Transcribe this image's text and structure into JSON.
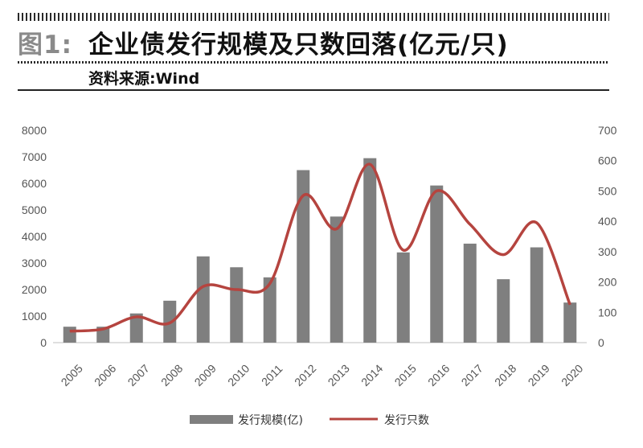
{
  "header": {
    "figure_label": "图1:",
    "title": "企业债发行规模及只数回落(亿元/只)",
    "source": "资料来源:Wind"
  },
  "chart_data": {
    "type": "bar",
    "categories": [
      "2005",
      "2006",
      "2007",
      "2008",
      "2009",
      "2010",
      "2011",
      "2012",
      "2013",
      "2014",
      "2015",
      "2016",
      "2017",
      "2018",
      "2019",
      "2020"
    ],
    "series": [
      {
        "name": "发行规模(亿)",
        "type": "bar",
        "axis": "left",
        "color": "#7f7f7f",
        "values": [
          600,
          600,
          1100,
          1580,
          3250,
          2840,
          2460,
          6500,
          4750,
          6950,
          3400,
          5920,
          3730,
          2390,
          3590,
          1510
        ]
      },
      {
        "name": "发行只数",
        "type": "line",
        "axis": "right",
        "color": "#b5443f",
        "values": [
          38,
          45,
          85,
          65,
          185,
          175,
          195,
          485,
          375,
          588,
          305,
          500,
          390,
          290,
          395,
          125
        ]
      }
    ],
    "y_left": {
      "min": 0,
      "max": 8000,
      "ticks": [
        "0",
        "1000",
        "2000",
        "3000",
        "4000",
        "5000",
        "6000",
        "7000",
        "8000"
      ]
    },
    "y_right": {
      "min": 0,
      "max": 700,
      "ticks": [
        "0",
        "100",
        "200",
        "300",
        "400",
        "500",
        "600",
        "700"
      ]
    },
    "grid": false,
    "legend_position": "bottom"
  }
}
